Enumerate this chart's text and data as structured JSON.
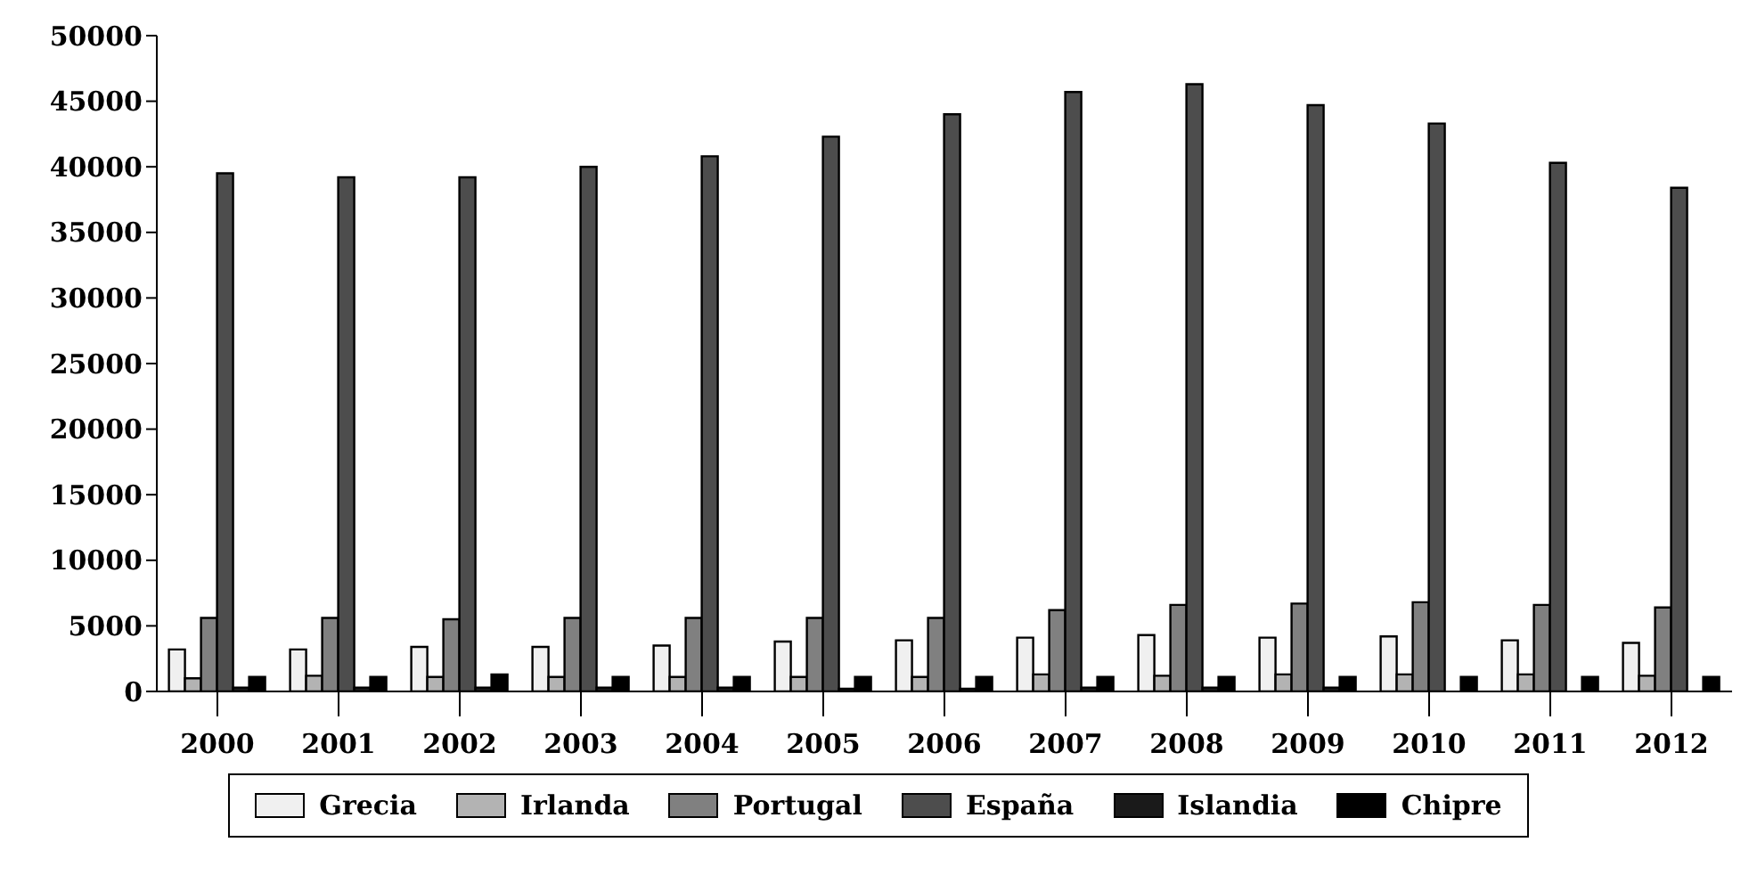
{
  "chart_data": {
    "type": "bar",
    "categories": [
      "2000",
      "2001",
      "2002",
      "2003",
      "2004",
      "2005",
      "2006",
      "2007",
      "2008",
      "2009",
      "2010",
      "2011",
      "2012"
    ],
    "series": [
      {
        "name": "Grecia",
        "color": "#f0f0f0",
        "values": [
          3200,
          3200,
          3400,
          3400,
          3500,
          3800,
          3900,
          4100,
          4300,
          4100,
          4200,
          3900,
          3700
        ]
      },
      {
        "name": "Irlanda",
        "color": "#b3b3b3",
        "values": [
          1000,
          1200,
          1100,
          1100,
          1100,
          1100,
          1100,
          1300,
          1200,
          1300,
          1300,
          1300,
          1200
        ]
      },
      {
        "name": "Portugal",
        "color": "#808080",
        "values": [
          5600,
          5600,
          5500,
          5600,
          5600,
          5600,
          5600,
          6200,
          6600,
          6700,
          6800,
          6600,
          6400
        ]
      },
      {
        "name": "España",
        "color": "#4d4d4d",
        "values": [
          39500,
          39200,
          39200,
          40000,
          40800,
          42300,
          44000,
          45700,
          46300,
          44700,
          43300,
          40300,
          38400
        ]
      },
      {
        "name": "Islandia",
        "color": "#1a1a1a",
        "values": [
          300,
          300,
          300,
          300,
          300,
          200,
          200,
          300,
          300,
          300,
          null,
          null,
          null
        ]
      },
      {
        "name": "Chipre",
        "color": "#000000",
        "values": [
          1100,
          1100,
          1300,
          1100,
          1100,
          1100,
          1100,
          1100,
          1100,
          1100,
          1100,
          1100,
          1100
        ]
      }
    ],
    "ylim": [
      0,
      50000
    ],
    "yticks": [
      0,
      5000,
      10000,
      15000,
      20000,
      25000,
      30000,
      35000,
      40000,
      45000,
      50000
    ],
    "grid": false,
    "legend": "bottom"
  }
}
